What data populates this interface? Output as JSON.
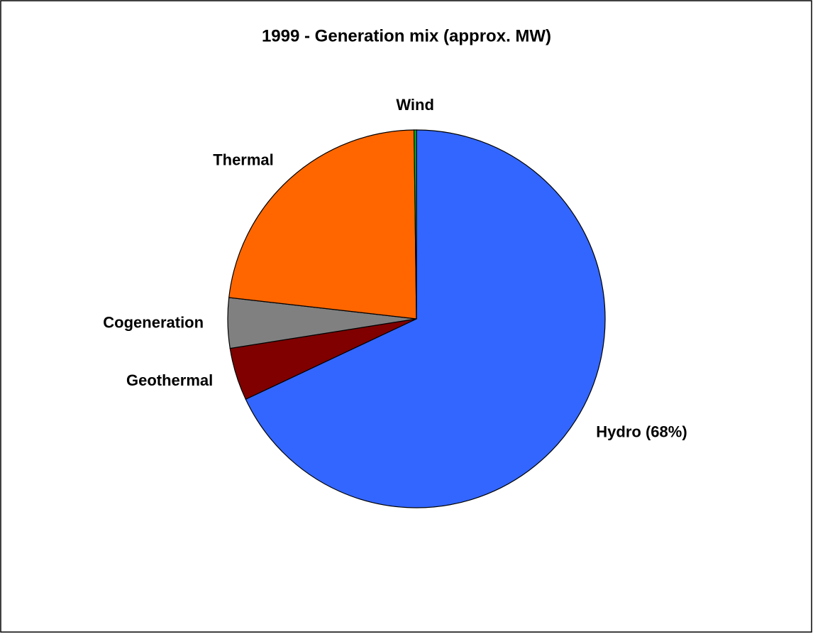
{
  "chart_data": {
    "type": "pie",
    "title": "1999 - Generation mix (approx. MW)",
    "categories": [
      "Hydro (68%)",
      "Geothermal",
      "Cogeneration",
      "Thermal",
      "Wind"
    ],
    "values": [
      68,
      4.5,
      4.3,
      23,
      0.2
    ],
    "colors": [
      "#3366ff",
      "#800000",
      "#808080",
      "#ff6600",
      "#00cc00"
    ]
  }
}
